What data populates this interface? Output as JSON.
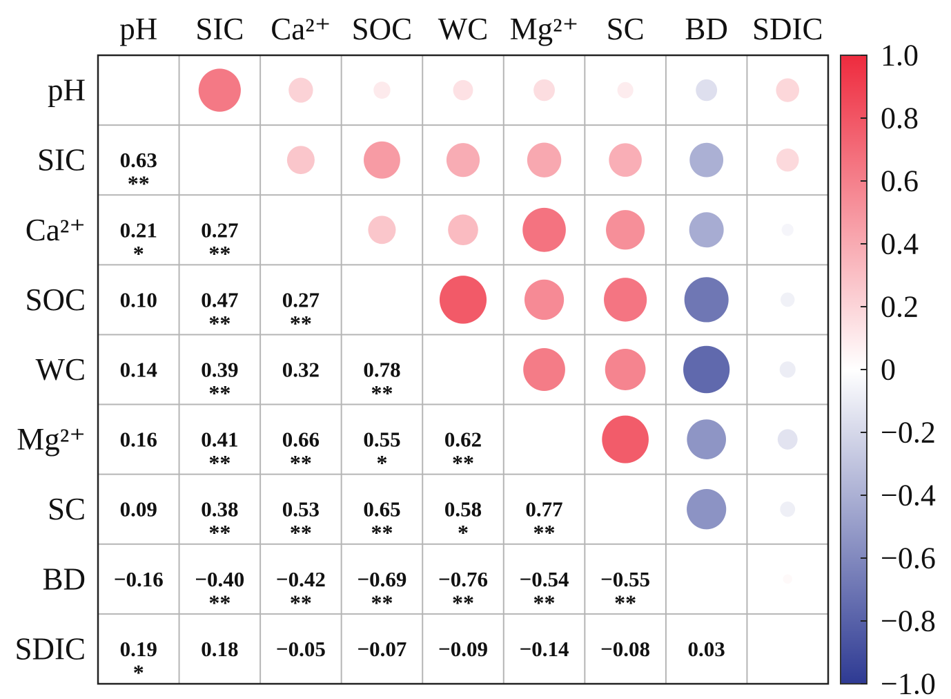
{
  "chart_data": {
    "type": "heatmap",
    "variables": [
      "pH",
      "SIC",
      "Ca²⁺",
      "SOC",
      "WC",
      "Mg²⁺",
      "SC",
      "BD",
      "SDIC"
    ],
    "lower_labels": [
      [
        "",
        "",
        "",
        "",
        "",
        "",
        "",
        "",
        ""
      ],
      [
        "0.63",
        "",
        "",
        "",
        "",
        "",
        "",
        "",
        ""
      ],
      [
        "0.21",
        "0.27",
        "",
        "",
        "",
        "",
        "",
        "",
        ""
      ],
      [
        "0.10",
        "0.47",
        "0.27",
        "",
        "",
        "",
        "",
        "",
        ""
      ],
      [
        "0.14",
        "0.39",
        "0.32",
        "0.78",
        "",
        "",
        "",
        "",
        ""
      ],
      [
        "0.16",
        "0.41",
        "0.66",
        "0.55",
        "0.62",
        "",
        "",
        "",
        ""
      ],
      [
        "0.09",
        "0.38",
        "0.53",
        "0.65",
        "0.58",
        "0.77",
        "",
        "",
        ""
      ],
      [
        "−0.16",
        "−0.40",
        "−0.42",
        "−0.69",
        "−0.76",
        "−0.54",
        "−0.55",
        "",
        ""
      ],
      [
        "0.19",
        "0.18",
        "−0.05",
        "−0.07",
        "−0.09",
        "−0.14",
        "−0.08",
        "0.03",
        ""
      ]
    ],
    "significance": [
      [
        "",
        "",
        "",
        "",
        "",
        "",
        "",
        "",
        ""
      ],
      [
        "**",
        "",
        "",
        "",
        "",
        "",
        "",
        "",
        ""
      ],
      [
        "*",
        "**",
        "",
        "",
        "",
        "",
        "",
        "",
        ""
      ],
      [
        "",
        "**",
        "**",
        "",
        "",
        "",
        "",
        "",
        ""
      ],
      [
        "",
        "**",
        "",
        "**",
        "",
        "",
        "",
        "",
        ""
      ],
      [
        "",
        "**",
        "**",
        "*",
        "**",
        "",
        "",
        "",
        ""
      ],
      [
        "",
        "**",
        "**",
        "**",
        "*",
        "**",
        "",
        "",
        ""
      ],
      [
        "",
        "**",
        "**",
        "**",
        "**",
        "**",
        "**",
        "",
        ""
      ],
      [
        "*",
        "",
        "",
        "",
        "",
        "",
        "",
        "",
        ""
      ]
    ],
    "upper_values": [
      [
        null,
        0.63,
        0.21,
        0.1,
        0.14,
        0.16,
        0.09,
        -0.16,
        0.19
      ],
      [
        null,
        null,
        0.27,
        0.47,
        0.39,
        0.41,
        0.38,
        -0.4,
        0.18
      ],
      [
        null,
        null,
        null,
        0.27,
        0.32,
        0.66,
        0.53,
        -0.42,
        -0.05
      ],
      [
        null,
        null,
        null,
        null,
        0.78,
        0.55,
        0.65,
        -0.69,
        -0.07
      ],
      [
        null,
        null,
        null,
        null,
        null,
        0.62,
        0.58,
        -0.76,
        -0.09
      ],
      [
        null,
        null,
        null,
        null,
        null,
        null,
        0.77,
        -0.54,
        -0.14
      ],
      [
        null,
        null,
        null,
        null,
        null,
        null,
        null,
        -0.55,
        -0.08
      ],
      [
        null,
        null,
        null,
        null,
        null,
        null,
        null,
        null,
        0.03
      ],
      [
        null,
        null,
        null,
        null,
        null,
        null,
        null,
        null,
        null
      ]
    ],
    "colorbar": {
      "range": [
        -1.0,
        1.0
      ],
      "tick_values": [
        1.0,
        0.8,
        0.6,
        0.4,
        0.2,
        0,
        -0.2,
        -0.4,
        -0.6,
        -0.8,
        -1.0
      ],
      "tick_labels": [
        "1.0",
        "0.8",
        "0.6",
        "0.4",
        "0.2",
        "0",
        "−0.2",
        "−0.4",
        "−0.6",
        "−0.8",
        "−1.0"
      ],
      "position": "right"
    },
    "colors": {
      "positive": "#ee2b3e",
      "neutral": "#ffffff",
      "negative": "#2e3a93",
      "grid": "#b5b5b5",
      "frame": "#222222"
    }
  }
}
